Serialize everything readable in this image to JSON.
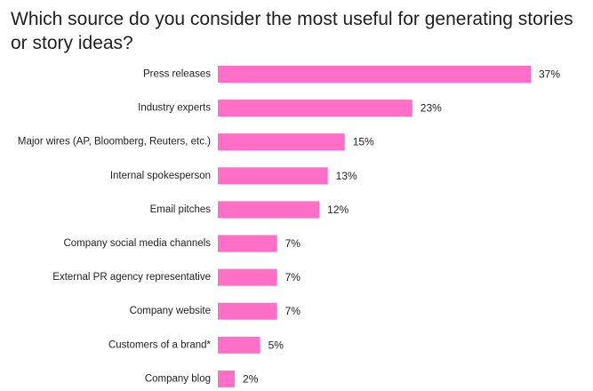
{
  "chart_data": {
    "type": "bar",
    "orientation": "horizontal",
    "title": "Which source do you consider the most useful for generating stories or story ideas?",
    "categories": [
      "Press releases",
      "Industry experts",
      "Major wires (AP, Bloomberg, Reuters, etc.)",
      "Internal spokesperson",
      "Email pitches",
      "Company social media channels",
      "External PR agency representative",
      "Company website",
      "Customers of a brand*",
      "Company blog"
    ],
    "values": [
      37,
      23,
      15,
      13,
      12,
      7,
      7,
      7,
      5,
      2
    ],
    "value_labels": [
      "37%",
      "23%",
      "15%",
      "13%",
      "12%",
      "7%",
      "7%",
      "7%",
      "5%",
      "2%"
    ],
    "unit": "%",
    "xlim": [
      0,
      37
    ],
    "grid": false,
    "legend": "none",
    "bar_color": "#ff6ec7"
  }
}
